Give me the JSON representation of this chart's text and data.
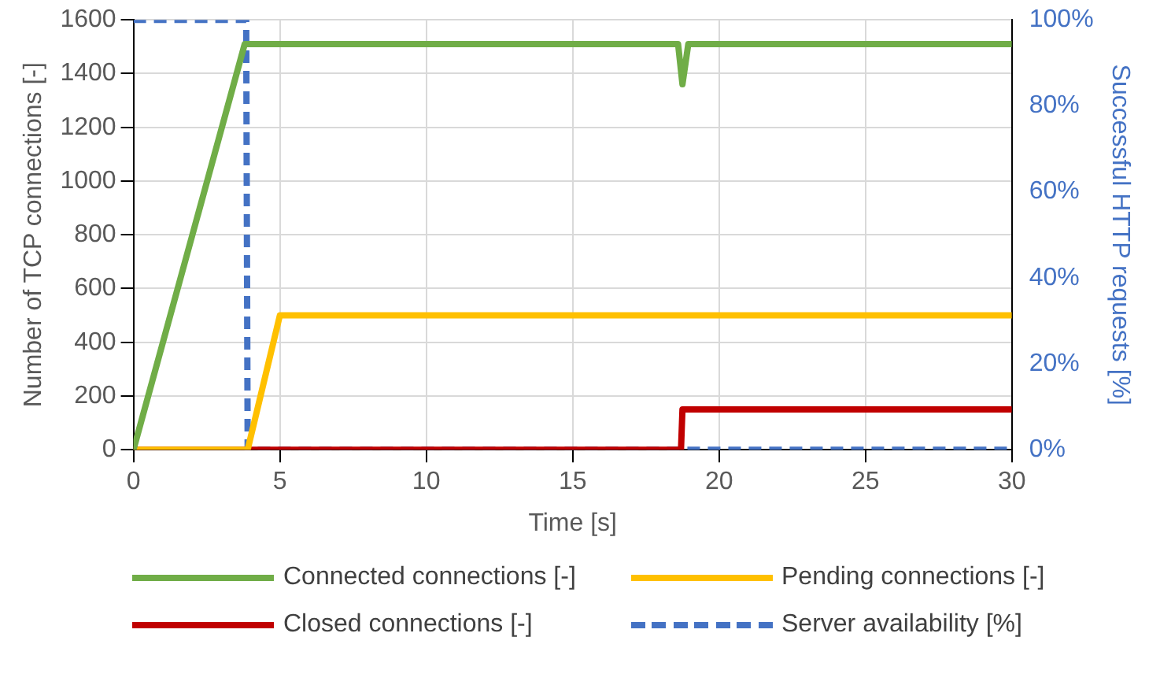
{
  "chart_data": {
    "type": "line",
    "xlabel": "Time [s]",
    "ylabel": "Number of TCP connections [-]",
    "y2label": "Successful HTTP requests [%]",
    "xlim": [
      0,
      30
    ],
    "xticks": [
      0,
      5,
      10,
      15,
      20,
      25,
      30
    ],
    "ylim": [
      0,
      1600
    ],
    "yticks": [
      0,
      200,
      400,
      600,
      800,
      1000,
      1200,
      1400,
      1600
    ],
    "y2lim": [
      0,
      100
    ],
    "y2ticks": [
      {
        "value": 0,
        "label": "0%"
      },
      {
        "value": 20,
        "label": "20%"
      },
      {
        "value": 40,
        "label": "40%"
      },
      {
        "value": 60,
        "label": "60%"
      },
      {
        "value": 80,
        "label": "80%"
      },
      {
        "value": 100,
        "label": "100%"
      }
    ],
    "grid": true,
    "legend": "bottom",
    "marker": "none",
    "series": [
      {
        "name": "Connected connections [-]",
        "color": "#70ad47",
        "x": [
          0,
          3.8,
          18.6,
          18.75,
          18.95,
          30
        ],
        "values": [
          0,
          1510,
          1510,
          1360,
          1510,
          1510
        ]
      },
      {
        "name": "Pending connections [-]",
        "color": "#ffc000",
        "x": [
          0,
          3.9,
          5,
          30
        ],
        "values": [
          0,
          0,
          500,
          500
        ]
      },
      {
        "name": "Closed connections [-]",
        "color": "#c00000",
        "x": [
          0,
          18.7,
          18.75,
          30
        ],
        "values": [
          0,
          0,
          150,
          150
        ]
      },
      {
        "name": "Server availability [%]",
        "color": "#4472c4",
        "axis": "y2",
        "line_style": "dashed",
        "x": [
          0,
          3.85,
          3.9,
          30
        ],
        "values": [
          100,
          100,
          0,
          0
        ]
      }
    ]
  }
}
